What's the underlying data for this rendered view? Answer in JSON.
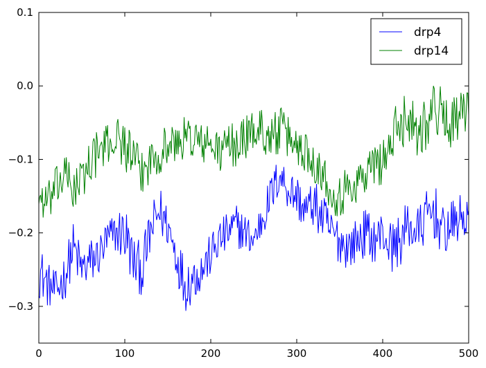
{
  "chart_data": {
    "type": "line",
    "title": "",
    "xlabel": "",
    "ylabel": "",
    "xlim": [
      0,
      500
    ],
    "ylim": [
      -0.35,
      0.1
    ],
    "xticks": [
      0,
      100,
      200,
      300,
      400,
      500
    ],
    "xtick_labels": [
      "0",
      "100",
      "200",
      "300",
      "400",
      "500"
    ],
    "yticks": [
      -0.3,
      -0.2,
      -0.1,
      0.0,
      0.1
    ],
    "ytick_labels": [
      "−0.3",
      "−0.2",
      "−0.1",
      "0.0",
      "0.1"
    ],
    "grid": false,
    "legend_position": "top-right",
    "x": [
      0,
      10,
      20,
      30,
      40,
      50,
      60,
      70,
      80,
      90,
      100,
      110,
      120,
      130,
      140,
      150,
      160,
      170,
      180,
      190,
      200,
      210,
      220,
      230,
      240,
      250,
      260,
      270,
      280,
      290,
      300,
      310,
      320,
      330,
      340,
      350,
      360,
      370,
      380,
      390,
      400,
      410,
      420,
      430,
      440,
      450,
      460,
      470,
      480,
      490,
      500
    ],
    "series": [
      {
        "name": "drp4",
        "color": "#0000ff",
        "values": [
          -0.25,
          -0.27,
          -0.28,
          -0.26,
          -0.22,
          -0.25,
          -0.24,
          -0.23,
          -0.21,
          -0.2,
          -0.2,
          -0.24,
          -0.25,
          -0.2,
          -0.17,
          -0.19,
          -0.23,
          -0.27,
          -0.26,
          -0.25,
          -0.23,
          -0.21,
          -0.2,
          -0.19,
          -0.2,
          -0.21,
          -0.18,
          -0.15,
          -0.12,
          -0.14,
          -0.15,
          -0.17,
          -0.16,
          -0.18,
          -0.2,
          -0.21,
          -0.22,
          -0.21,
          -0.2,
          -0.21,
          -0.2,
          -0.22,
          -0.21,
          -0.19,
          -0.2,
          -0.18,
          -0.17,
          -0.2,
          -0.19,
          -0.18,
          -0.18
        ],
        "noise": [
          0.038,
          0.031,
          0.028,
          0.033,
          0.035,
          0.032,
          0.034,
          0.03,
          0.031,
          0.028,
          0.045,
          0.036,
          0.037,
          0.034,
          0.036,
          0.032,
          0.033,
          0.038,
          0.034,
          0.03,
          0.029,
          0.031,
          0.027,
          0.03,
          0.028,
          0.026,
          0.028,
          0.03,
          0.028,
          0.029,
          0.031,
          0.03,
          0.032,
          0.035,
          0.034,
          0.032,
          0.03,
          0.031,
          0.034,
          0.031,
          0.032,
          0.035,
          0.037,
          0.035,
          0.034,
          0.036,
          0.04,
          0.035,
          0.033,
          0.032,
          0.03
        ]
      },
      {
        "name": "drp14",
        "color": "#008000",
        "values": [
          -0.15,
          -0.16,
          -0.14,
          -0.12,
          -0.14,
          -0.13,
          -0.1,
          -0.09,
          -0.08,
          -0.07,
          -0.08,
          -0.1,
          -0.12,
          -0.1,
          -0.09,
          -0.08,
          -0.08,
          -0.07,
          -0.07,
          -0.08,
          -0.08,
          -0.09,
          -0.08,
          -0.08,
          -0.07,
          -0.06,
          -0.06,
          -0.07,
          -0.06,
          -0.07,
          -0.08,
          -0.09,
          -0.1,
          -0.12,
          -0.14,
          -0.15,
          -0.14,
          -0.13,
          -0.12,
          -0.11,
          -0.1,
          -0.08,
          -0.05,
          -0.04,
          -0.06,
          -0.05,
          -0.03,
          -0.04,
          -0.05,
          -0.04,
          -0.04
        ],
        "noise": [
          0.03,
          0.028,
          0.03,
          0.029,
          0.031,
          0.033,
          0.03,
          0.032,
          0.028,
          0.03,
          0.035,
          0.031,
          0.03,
          0.029,
          0.031,
          0.03,
          0.028,
          0.03,
          0.031,
          0.029,
          0.028,
          0.03,
          0.029,
          0.031,
          0.03,
          0.029,
          0.031,
          0.03,
          0.033,
          0.031,
          0.03,
          0.031,
          0.03,
          0.029,
          0.031,
          0.033,
          0.03,
          0.031,
          0.032,
          0.034,
          0.033,
          0.036,
          0.04,
          0.038,
          0.037,
          0.038,
          0.04,
          0.037,
          0.035,
          0.034,
          0.033
        ]
      }
    ]
  }
}
